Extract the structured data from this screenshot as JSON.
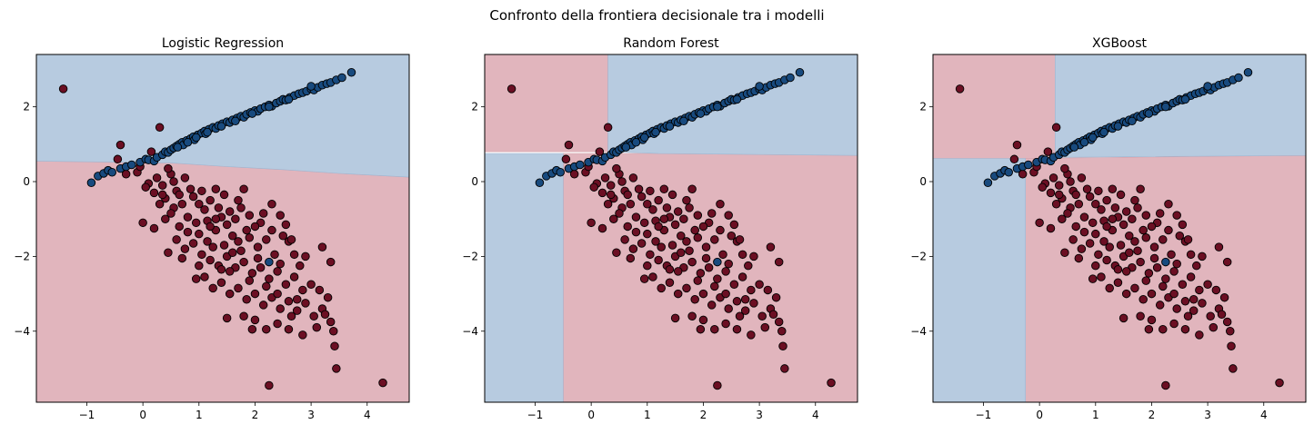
{
  "figure": {
    "suptitle": "Confronto della frontiera decisionale tra i modelli"
  },
  "colors": {
    "region_blue": "#b7cbe0",
    "region_red": "#e1b5bd",
    "point_blue": "#184a7e",
    "point_red": "#6b0f23",
    "edge": "#000000"
  },
  "chart_data": [
    {
      "type": "scatter",
      "title": "Logistic Regression",
      "xlim": [
        -1.9,
        4.75
      ],
      "ylim": [
        -5.9,
        3.4
      ],
      "xticks": [
        -1,
        0,
        1,
        2,
        3,
        4
      ],
      "yticks": [
        -4,
        -2,
        0,
        2
      ],
      "regions": {
        "blue": [
          [
            [
              -1.9,
              0.55
            ],
            [
              0.5,
              0.5
            ],
            [
              1.5,
              0.4
            ],
            [
              2.5,
              0.32
            ],
            [
              3.5,
              0.22
            ],
            [
              4.75,
              0.12
            ],
            [
              4.75,
              3.4
            ],
            [
              -1.9,
              3.4
            ]
          ]
        ],
        "red": [
          [
            [
              -1.9,
              -5.9
            ],
            [
              4.75,
              -5.9
            ],
            [
              4.75,
              0.12
            ],
            [
              3.5,
              0.22
            ],
            [
              2.5,
              0.32
            ],
            [
              1.5,
              0.4
            ],
            [
              0.5,
              0.5
            ],
            [
              -1.9,
              0.55
            ]
          ]
        ]
      }
    },
    {
      "type": "scatter",
      "title": "Random Forest",
      "xlim": [
        -1.9,
        4.75
      ],
      "ylim": [
        -5.9,
        3.4
      ],
      "xticks": [
        -1,
        0,
        1,
        2,
        3,
        4
      ],
      "yticks": [
        -4,
        -2,
        0,
        2
      ],
      "regions": {
        "blue": [
          [
            [
              0.3,
              0.8
            ],
            [
              0.3,
              3.4
            ],
            [
              4.75,
              3.4
            ],
            [
              4.75,
              0.7
            ],
            [
              1.2,
              0.75
            ],
            [
              0.3,
              0.8
            ]
          ],
          [
            [
              -1.9,
              0.75
            ],
            [
              -0.5,
              0.75
            ],
            [
              -0.5,
              -5.9
            ],
            [
              -1.9,
              -5.9
            ]
          ]
        ],
        "red": [
          [
            [
              -1.9,
              3.4
            ],
            [
              0.3,
              3.4
            ],
            [
              0.3,
              0.8
            ],
            [
              -1.9,
              0.8
            ]
          ],
          [
            [
              -0.5,
              0.75
            ],
            [
              1.2,
              0.75
            ],
            [
              4.75,
              0.7
            ],
            [
              4.75,
              -5.9
            ],
            [
              -0.5,
              -5.9
            ]
          ]
        ]
      }
    },
    {
      "type": "scatter",
      "title": "XGBoost",
      "xlim": [
        -1.9,
        4.75
      ],
      "ylim": [
        -5.9,
        3.4
      ],
      "xticks": [
        -1,
        0,
        1,
        2,
        3,
        4
      ],
      "yticks": [
        -4,
        -2,
        0,
        2
      ],
      "regions": {
        "blue": [
          [
            [
              0.28,
              0.65
            ],
            [
              0.28,
              3.4
            ],
            [
              4.75,
              3.4
            ],
            [
              4.75,
              0.7
            ],
            [
              0.28,
              0.65
            ]
          ],
          [
            [
              -1.9,
              0.62
            ],
            [
              -0.25,
              0.62
            ],
            [
              -0.25,
              -5.9
            ],
            [
              -1.9,
              -5.9
            ]
          ]
        ],
        "red": [
          [
            [
              -1.9,
              3.4
            ],
            [
              0.28,
              3.4
            ],
            [
              0.28,
              0.62
            ],
            [
              -1.9,
              0.62
            ]
          ],
          [
            [
              -0.25,
              0.62
            ],
            [
              4.75,
              0.7
            ],
            [
              4.75,
              -5.9
            ],
            [
              -0.25,
              -5.9
            ]
          ]
        ]
      }
    }
  ],
  "points": {
    "class_blue": [
      [
        -0.92,
        -0.03
      ],
      [
        -0.8,
        0.15
      ],
      [
        -0.7,
        0.22
      ],
      [
        -0.62,
        0.3
      ],
      [
        -0.55,
        0.25
      ],
      [
        -0.4,
        0.35
      ],
      [
        -0.3,
        0.4
      ],
      [
        -0.2,
        0.45
      ],
      [
        -0.05,
        0.52
      ],
      [
        0.05,
        0.6
      ],
      [
        0.1,
        0.58
      ],
      [
        0.2,
        0.55
      ],
      [
        0.25,
        0.65
      ],
      [
        0.35,
        0.72
      ],
      [
        0.4,
        0.8
      ],
      [
        0.45,
        0.78
      ],
      [
        0.5,
        0.85
      ],
      [
        0.55,
        0.9
      ],
      [
        0.6,
        0.95
      ],
      [
        0.65,
        1.0
      ],
      [
        0.7,
        1.05
      ],
      [
        0.72,
        0.98
      ],
      [
        0.78,
        1.1
      ],
      [
        0.85,
        1.15
      ],
      [
        0.9,
        1.2
      ],
      [
        0.92,
        1.12
      ],
      [
        0.98,
        1.25
      ],
      [
        1.05,
        1.3
      ],
      [
        1.1,
        1.35
      ],
      [
        1.12,
        1.28
      ],
      [
        1.18,
        1.4
      ],
      [
        1.25,
        1.45
      ],
      [
        1.3,
        1.42
      ],
      [
        1.35,
        1.5
      ],
      [
        1.42,
        1.55
      ],
      [
        1.5,
        1.6
      ],
      [
        1.55,
        1.58
      ],
      [
        1.6,
        1.65
      ],
      [
        1.68,
        1.7
      ],
      [
        1.75,
        1.75
      ],
      [
        1.8,
        1.72
      ],
      [
        1.85,
        1.8
      ],
      [
        1.92,
        1.85
      ],
      [
        2.0,
        1.9
      ],
      [
        2.05,
        1.88
      ],
      [
        2.1,
        1.95
      ],
      [
        2.18,
        2.0
      ],
      [
        2.25,
        2.05
      ],
      [
        2.3,
        2.02
      ],
      [
        2.38,
        2.1
      ],
      [
        2.45,
        2.15
      ],
      [
        2.5,
        2.2
      ],
      [
        2.55,
        2.18
      ],
      [
        2.62,
        2.25
      ],
      [
        2.7,
        2.3
      ],
      [
        2.78,
        2.35
      ],
      [
        2.85,
        2.38
      ],
      [
        2.92,
        2.42
      ],
      [
        3.0,
        2.48
      ],
      [
        3.05,
        2.45
      ],
      [
        3.12,
        2.52
      ],
      [
        3.2,
        2.58
      ],
      [
        3.28,
        2.62
      ],
      [
        3.35,
        2.65
      ],
      [
        3.45,
        2.72
      ],
      [
        3.55,
        2.78
      ],
      [
        3.72,
        2.92
      ],
      [
        3.0,
        2.55
      ],
      [
        2.6,
        2.2
      ],
      [
        2.25,
        2.0
      ],
      [
        1.95,
        1.82
      ],
      [
        1.65,
        1.62
      ],
      [
        1.4,
        1.48
      ],
      [
        1.15,
        1.32
      ],
      [
        0.95,
        1.18
      ],
      [
        0.8,
        1.05
      ],
      [
        0.62,
        0.92
      ],
      [
        2.25,
        -2.15
      ]
    ],
    "class_red": [
      [
        -1.42,
        2.48
      ],
      [
        -0.4,
        0.98
      ],
      [
        -0.45,
        0.6
      ],
      [
        -0.3,
        0.2
      ],
      [
        -0.1,
        0.25
      ],
      [
        0.1,
        -0.05
      ],
      [
        0.2,
        -0.3
      ],
      [
        0.05,
        -0.15
      ],
      [
        0.3,
        1.45
      ],
      [
        0.5,
        0.2
      ],
      [
        0.35,
        -0.1
      ],
      [
        0.4,
        -0.45
      ],
      [
        0.6,
        -0.25
      ],
      [
        0.75,
        0.1
      ],
      [
        0.9,
        -0.4
      ],
      [
        0.55,
        -0.7
      ],
      [
        0.3,
        -0.6
      ],
      [
        0.0,
        -1.1
      ],
      [
        0.2,
        -1.25
      ],
      [
        0.4,
        -1.0
      ],
      [
        0.5,
        -0.85
      ],
      [
        0.65,
        -1.2
      ],
      [
        0.8,
        -0.95
      ],
      [
        0.95,
        -1.1
      ],
      [
        1.1,
        -0.75
      ],
      [
        1.2,
        -0.5
      ],
      [
        1.3,
        -0.2
      ],
      [
        1.45,
        -0.35
      ],
      [
        1.55,
        -0.8
      ],
      [
        1.7,
        -0.5
      ],
      [
        1.8,
        -0.2
      ],
      [
        1.9,
        -0.9
      ],
      [
        2.1,
        -1.1
      ],
      [
        2.3,
        -0.6
      ],
      [
        2.45,
        -0.9
      ],
      [
        1.0,
        -1.4
      ],
      [
        1.15,
        -1.6
      ],
      [
        1.3,
        -1.3
      ],
      [
        1.45,
        -1.7
      ],
      [
        1.6,
        -1.45
      ],
      [
        1.75,
        -1.85
      ],
      [
        1.9,
        -1.5
      ],
      [
        2.05,
        -1.75
      ],
      [
        2.2,
        -1.55
      ],
      [
        2.35,
        -1.95
      ],
      [
        2.5,
        -1.45
      ],
      [
        2.6,
        -1.6
      ],
      [
        2.7,
        -1.95
      ],
      [
        0.6,
        -1.55
      ],
      [
        0.75,
        -1.8
      ],
      [
        0.9,
        -1.65
      ],
      [
        1.05,
        -1.95
      ],
      [
        1.2,
        -2.1
      ],
      [
        1.35,
        -2.25
      ],
      [
        1.5,
        -2.0
      ],
      [
        1.65,
        -2.3
      ],
      [
        1.8,
        -2.15
      ],
      [
        1.95,
        -2.45
      ],
      [
        2.1,
        -2.3
      ],
      [
        2.25,
        -2.6
      ],
      [
        2.4,
        -2.4
      ],
      [
        2.55,
        -2.75
      ],
      [
        2.7,
        -2.55
      ],
      [
        2.85,
        -2.9
      ],
      [
        3.0,
        -2.75
      ],
      [
        0.45,
        -1.9
      ],
      [
        0.95,
        -2.6
      ],
      [
        1.1,
        -2.55
      ],
      [
        1.25,
        -2.85
      ],
      [
        1.4,
        -2.7
      ],
      [
        1.55,
        -3.0
      ],
      [
        1.7,
        -2.85
      ],
      [
        1.85,
        -3.15
      ],
      [
        2.0,
        -3.0
      ],
      [
        2.15,
        -3.3
      ],
      [
        2.3,
        -3.1
      ],
      [
        2.45,
        -3.4
      ],
      [
        2.6,
        -3.2
      ],
      [
        2.75,
        -3.45
      ],
      [
        2.9,
        -3.25
      ],
      [
        3.05,
        -3.6
      ],
      [
        3.2,
        -3.4
      ],
      [
        3.35,
        -3.75
      ],
      [
        1.5,
        -3.65
      ],
      [
        1.8,
        -3.6
      ],
      [
        2.0,
        -3.7
      ],
      [
        2.2,
        -3.95
      ],
      [
        2.4,
        -3.8
      ],
      [
        2.6,
        -3.95
      ],
      [
        2.85,
        -4.1
      ],
      [
        3.1,
        -3.9
      ],
      [
        3.4,
        -4.0
      ],
      [
        3.42,
        -4.4
      ],
      [
        3.45,
        -5.0
      ],
      [
        2.25,
        -5.45
      ],
      [
        4.28,
        -5.38
      ],
      [
        0.7,
        -0.6
      ],
      [
        0.85,
        -0.2
      ],
      [
        1.0,
        -0.6
      ],
      [
        1.15,
        -1.05
      ],
      [
        1.35,
        -0.7
      ],
      [
        1.5,
        -1.15
      ],
      [
        1.65,
        -1.0
      ],
      [
        1.85,
        -1.3
      ],
      [
        2.0,
        -1.2
      ],
      [
        2.15,
        -0.85
      ],
      [
        2.3,
        -1.3
      ],
      [
        0.65,
        -0.35
      ],
      [
        1.25,
        -1.75
      ],
      [
        1.55,
        -2.4
      ],
      [
        2.05,
        -2.05
      ],
      [
        2.45,
        -2.2
      ],
      [
        2.8,
        -2.25
      ],
      [
        3.15,
        -2.9
      ],
      [
        3.3,
        -3.1
      ],
      [
        1.95,
        -3.95
      ],
      [
        2.65,
        -3.6
      ],
      [
        3.25,
        -3.55
      ],
      [
        1.7,
        -1.6
      ],
      [
        2.55,
        -1.15
      ],
      [
        3.2,
        -1.75
      ],
      [
        3.35,
        -2.15
      ],
      [
        2.9,
        -2.0
      ],
      [
        0.15,
        0.8
      ],
      [
        0.45,
        0.35
      ],
      [
        0.25,
        0.1
      ],
      [
        -0.05,
        0.4
      ],
      [
        1.05,
        -0.25
      ],
      [
        1.4,
        -0.95
      ],
      [
        1.6,
        -1.9
      ],
      [
        1.0,
        -2.25
      ],
      [
        0.7,
        -2.05
      ],
      [
        0.8,
        -1.35
      ],
      [
        1.2,
        -1.2
      ],
      [
        2.2,
        -2.8
      ],
      [
        2.4,
        -3.0
      ],
      [
        2.75,
        -3.15
      ],
      [
        1.4,
        -2.35
      ],
      [
        1.9,
        -2.65
      ],
      [
        2.65,
        -1.55
      ],
      [
        1.3,
        -1.0
      ],
      [
        1.75,
        -0.7
      ],
      [
        0.55,
        0.0
      ],
      [
        0.35,
        -0.35
      ]
    ]
  }
}
